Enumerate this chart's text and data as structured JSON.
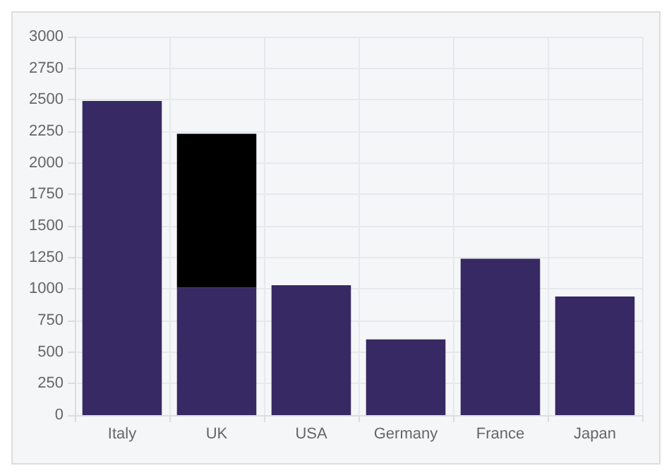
{
  "chart_data": {
    "type": "bar",
    "categories": [
      "Italy",
      "UK",
      "USA",
      "Germany",
      "France",
      "Japan"
    ],
    "stacked": true,
    "series": [
      {
        "color": "#372963",
        "values": [
          2490,
          1010,
          1030,
          600,
          1240,
          940
        ]
      },
      {
        "color": "#000000",
        "values": [
          null,
          1220,
          null,
          null,
          null,
          null
        ]
      }
    ],
    "ylim": [
      0,
      3000
    ],
    "yticks": [
      0,
      250,
      500,
      750,
      1000,
      1250,
      1500,
      1750,
      2000,
      2250,
      2500,
      2750,
      3000
    ],
    "grid": true
  }
}
